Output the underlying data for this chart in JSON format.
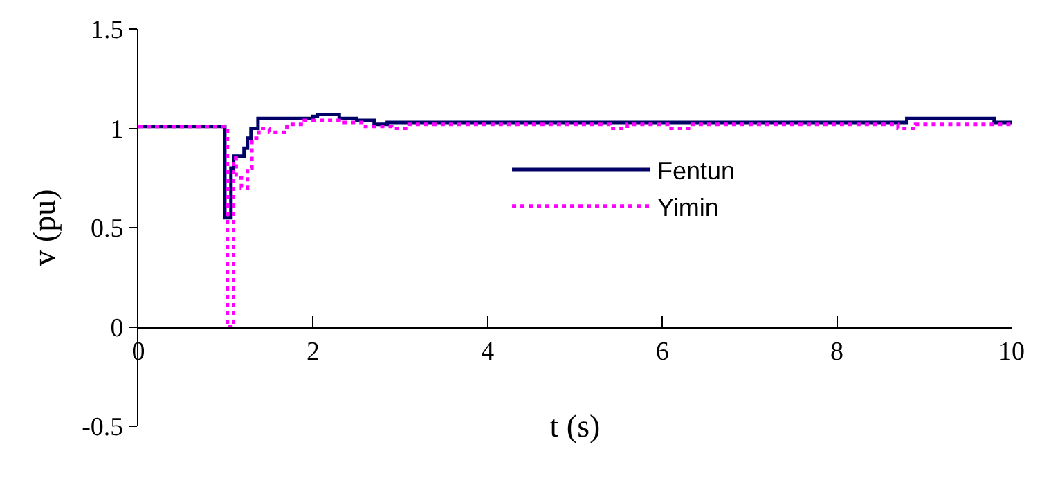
{
  "chart_data": {
    "type": "step",
    "xlabel": "t (s)",
    "ylabel": "v (pu)",
    "xlim": [
      0,
      10
    ],
    "xticks": [
      0,
      2,
      4,
      6,
      8,
      10
    ],
    "ylim": [
      -0.5,
      1.5
    ],
    "yticks": [
      -0.5,
      0,
      0.5,
      1,
      1.5
    ],
    "legend": "center",
    "marker": "none",
    "series": [
      {
        "name": "Fentun",
        "color": "#000066",
        "line_style": "solid",
        "x": [
          0,
          0.99,
          1.06,
          1.09,
          1.21,
          1.25,
          1.29,
          1.37,
          2.0,
          2.05,
          2.3,
          2.5,
          2.7,
          2.85,
          3.0,
          8.8,
          9.8,
          10
        ],
        "values": [
          1.01,
          0.55,
          0.8,
          0.86,
          0.9,
          0.95,
          1.0,
          1.05,
          1.06,
          1.07,
          1.05,
          1.04,
          1.02,
          1.03,
          1.03,
          1.05,
          1.03,
          1.03
        ]
      },
      {
        "name": "Yimin",
        "color": "#ff00ff",
        "line_style": "dotted",
        "x": [
          0,
          1.02,
          1.09,
          1.12,
          1.18,
          1.25,
          1.3,
          1.38,
          1.45,
          1.5,
          1.7,
          1.9,
          2.2,
          2.3,
          2.6,
          2.9,
          3.1,
          5.4,
          5.6,
          6.1,
          6.3,
          8.7,
          8.9,
          10
        ],
        "values": [
          1.01,
          0.0,
          0.85,
          0.75,
          0.7,
          0.8,
          0.95,
          1.0,
          1.0,
          0.98,
          1.02,
          1.04,
          1.04,
          1.03,
          1.01,
          1.0,
          1.02,
          1.0,
          1.02,
          1.0,
          1.02,
          1.0,
          1.02,
          1.02
        ]
      }
    ]
  }
}
